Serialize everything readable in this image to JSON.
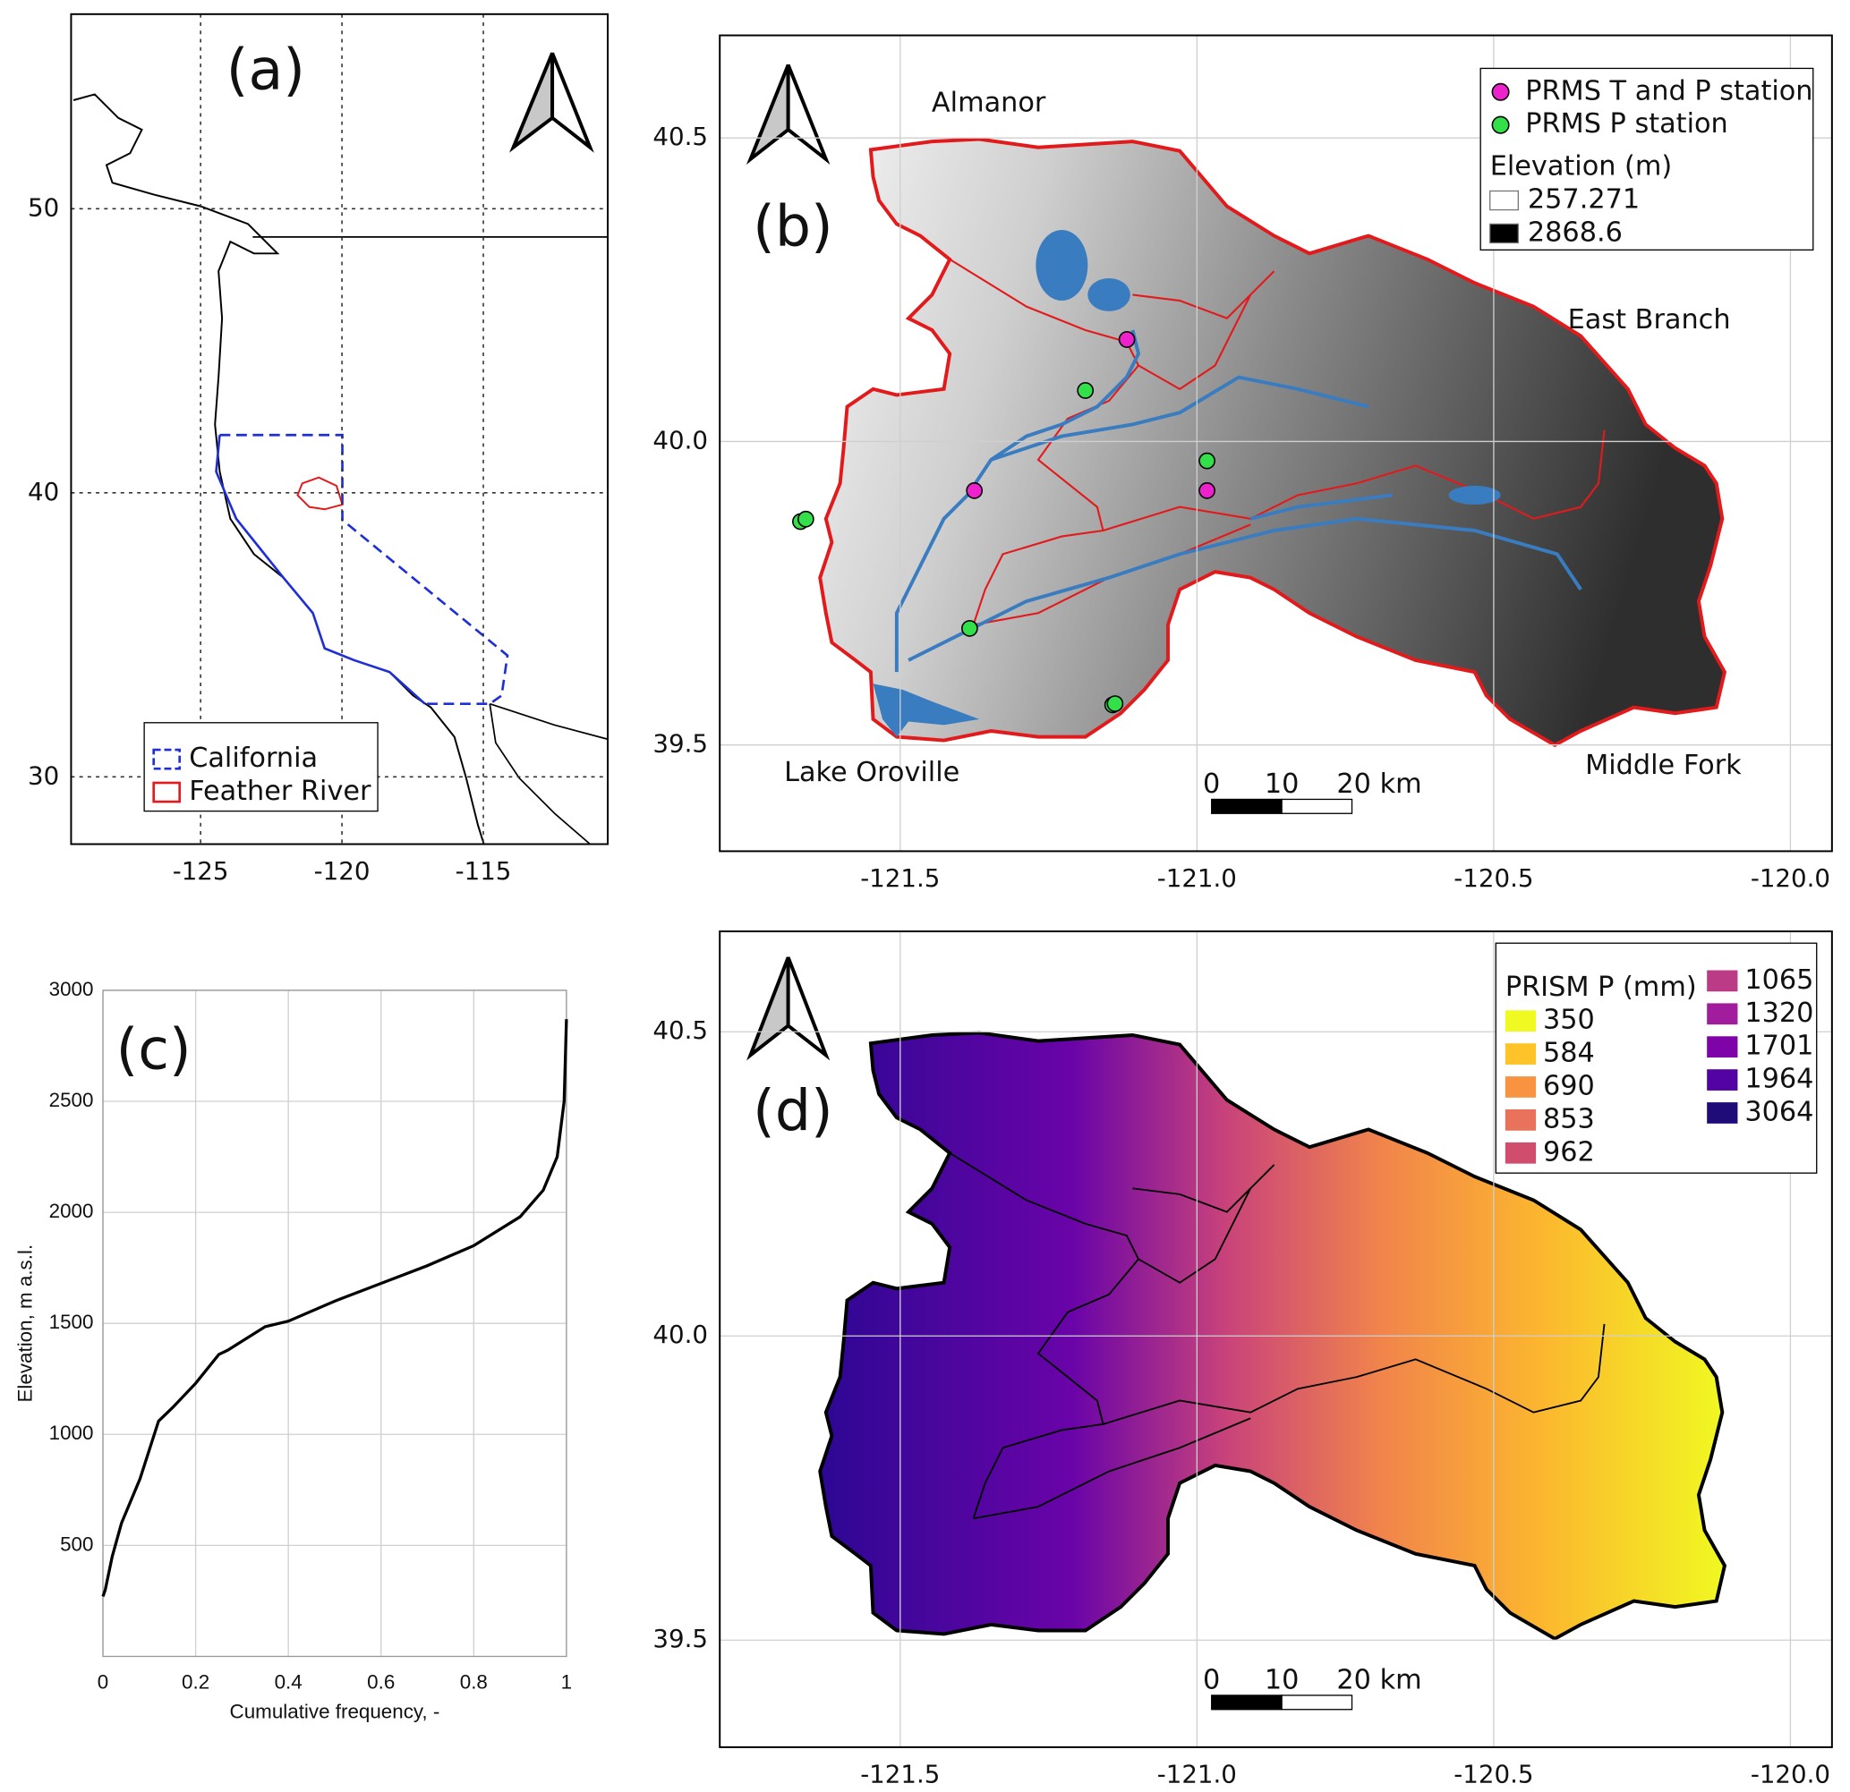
{
  "chart_data": [
    {
      "type": "map",
      "label": "(a)",
      "xlim": [
        -129.58,
        -110.6
      ],
      "ylim": [
        27.63,
        56.85
      ],
      "xticks": [
        -125,
        -120,
        -115
      ],
      "yticks": [
        30,
        40,
        50
      ],
      "grid": true,
      "legend": [
        {
          "name": "California",
          "color": "#1f2fd6"
        },
        {
          "name": "Feather River",
          "color": "#e31a1c"
        }
      ]
    },
    {
      "type": "map",
      "label": "(b)",
      "xlim": [
        -121.804,
        -119.93
      ],
      "ylim": [
        39.325,
        40.669
      ],
      "xticks": [
        -121.5,
        {
          "value": -121,
          "label": "-121.0"
        },
        -120.5,
        {
          "value": -120,
          "label": "-120.0"
        }
      ],
      "yticks": [
        39.5,
        {
          "value": 40,
          "label": "40.0"
        },
        40.5
      ],
      "grid": true,
      "annotations": [
        "Almanor",
        "East Branch",
        "Lake Oroville",
        "Middle Fork"
      ],
      "scale_bar": [
        0,
        10,
        {
          "value": 20,
          "label": "20 km"
        }
      ],
      "series": [
        {
          "name": "PRMS T and P station",
          "color": "#ee22cc",
          "x": [
            -121.118,
            -121.375,
            -120.983
          ],
          "values": [
            40.168,
            39.919,
            39.919
          ]
        },
        {
          "name": "PRMS P station",
          "color": "#33e04a",
          "x": [
            -121.188,
            -120.983,
            -121.668,
            -121.659,
            -121.383,
            -121.142,
            -121.138
          ],
          "values": [
            40.084,
            39.968,
            39.868,
            39.872,
            39.692,
            39.566,
            39.568
          ]
        }
      ],
      "elevation_legend": {
        "title": "Elevation (m)",
        "values": [
          257.271,
          2868.6
        ],
        "colors": [
          "#ffffff",
          "#000000"
        ]
      }
    },
    {
      "type": "line",
      "label": "(c)",
      "color": "#000000",
      "x_label": "Cumulative frequency, -",
      "y_label": "Elevation, m a.s.l.",
      "x": [
        0,
        0.005,
        0.02,
        0.04,
        0.08,
        0.12,
        0.15,
        0.2,
        0.25,
        0.27,
        0.35,
        0.4,
        0.5,
        0.6,
        0.7,
        0.8,
        0.9,
        0.95,
        0.98,
        0.995,
        1
      ],
      "values": [
        270,
        300,
        450,
        600,
        800,
        1060,
        1120,
        1230,
        1360,
        1380,
        1485,
        1510,
        1600,
        1680,
        1760,
        1850,
        1980,
        2100,
        2250,
        2500,
        2870
      ],
      "xlim": [
        0,
        1
      ],
      "ylim": [
        0,
        3000
      ],
      "xticks": [
        0,
        0.2,
        0.4,
        0.6,
        0.8,
        1
      ],
      "yticks": [
        500,
        1000,
        1500,
        2000,
        2500,
        3000
      ],
      "grid": true
    },
    {
      "type": "map",
      "label": "(d)",
      "xlim": [
        -121.804,
        -119.93
      ],
      "ylim": [
        39.324,
        40.665
      ],
      "xticks": [
        -121.5,
        {
          "value": -121,
          "label": "-121.0"
        },
        -120.5,
        {
          "value": -120,
          "label": "-120.0"
        }
      ],
      "yticks": [
        39.5,
        {
          "value": 40,
          "label": "40.0"
        },
        40.5
      ],
      "grid": true,
      "scale_bar": [
        0,
        10,
        {
          "value": 20,
          "label": "20 km"
        }
      ],
      "colorbar": {
        "title": "PRISM P (mm)",
        "values": [
          350,
          584,
          690,
          853,
          962,
          1065,
          1320,
          1701,
          1964,
          3064
        ],
        "colors": [
          "#f0f921",
          "#fdc328",
          "#f89441",
          "#e8735a",
          "#d14d6e",
          "#bb3b86",
          "#a21d9e",
          "#7e03a8",
          "#5302a3",
          "#1f0c78"
        ]
      }
    }
  ]
}
